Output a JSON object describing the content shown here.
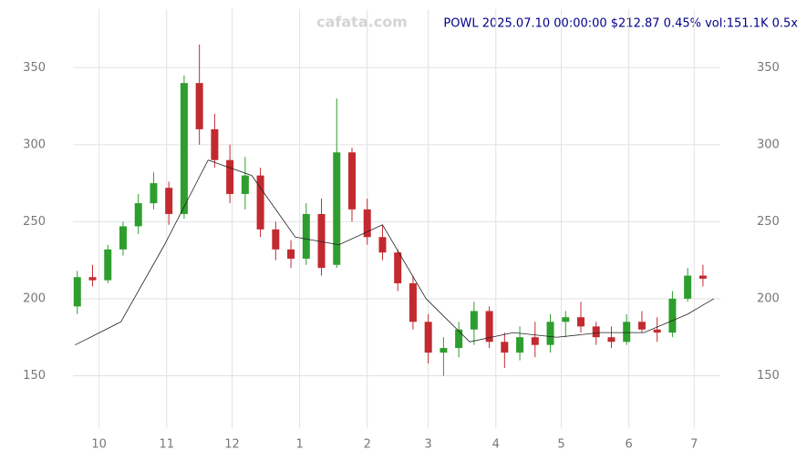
{
  "chart_data": {
    "type": "candlestick",
    "title": "POWL 2025.07.10 00:00:00 $212.87 0.45% vol:151.1K 0.5x",
    "watermark": "cafata.com",
    "x": [
      20,
      27,
      34,
      41,
      48,
      55,
      62,
      69,
      76,
      83,
      90,
      97,
      104,
      111,
      118,
      125,
      132,
      139,
      146,
      153,
      160,
      167,
      174,
      181,
      188,
      195,
      202,
      209,
      216,
      223,
      230,
      237,
      244,
      251,
      258,
      265,
      272,
      279,
      286,
      293,
      300,
      307
    ],
    "open": [
      195,
      214,
      212,
      232,
      247,
      262,
      272,
      255,
      340,
      310,
      290,
      268,
      280,
      245,
      232,
      226,
      255,
      222,
      295,
      258,
      240,
      230,
      210,
      185,
      165,
      168,
      180,
      192,
      172,
      165,
      175,
      170,
      185,
      188,
      182,
      175,
      172,
      185,
      180,
      178,
      200,
      215
    ],
    "high": [
      218,
      222,
      235,
      250,
      268,
      282,
      276,
      345,
      365,
      320,
      300,
      292,
      285,
      250,
      238,
      262,
      265,
      330,
      298,
      265,
      248,
      232,
      215,
      190,
      175,
      185,
      198,
      195,
      178,
      182,
      185,
      190,
      192,
      198,
      185,
      182,
      190,
      192,
      188,
      205,
      220,
      222
    ],
    "low": [
      190,
      208,
      210,
      228,
      242,
      258,
      248,
      252,
      300,
      285,
      262,
      258,
      240,
      225,
      220,
      222,
      215,
      220,
      250,
      235,
      225,
      205,
      180,
      158,
      150,
      162,
      170,
      168,
      155,
      160,
      162,
      165,
      175,
      178,
      170,
      168,
      170,
      178,
      172,
      175,
      198,
      208
    ],
    "close": [
      214,
      212,
      232,
      247,
      262,
      275,
      255,
      340,
      310,
      290,
      268,
      280,
      245,
      232,
      226,
      255,
      220,
      295,
      258,
      240,
      230,
      210,
      185,
      165,
      168,
      180,
      192,
      172,
      165,
      175,
      170,
      185,
      188,
      182,
      175,
      172,
      185,
      180,
      178,
      200,
      215,
      213
    ],
    "up_color": "#2e9e2e",
    "down_color": "#c22a30",
    "ma": {
      "color": "#222222",
      "x": [
        19,
        40,
        60,
        80,
        100,
        120,
        140,
        160,
        180,
        200,
        220,
        240,
        260,
        280,
        300,
        312
      ],
      "values": [
        170,
        185,
        235,
        290,
        280,
        240,
        235,
        248,
        200,
        172,
        178,
        175,
        178,
        178,
        190,
        200
      ]
    },
    "xlim": [
      18,
      315
    ],
    "ylim": [
      116,
      388
    ],
    "xticks": [
      {
        "value": 30,
        "label": "10"
      },
      {
        "value": 61,
        "label": "11"
      },
      {
        "value": 91,
        "label": "12"
      },
      {
        "value": 122,
        "label": "1"
      },
      {
        "value": 153,
        "label": "2"
      },
      {
        "value": 181,
        "label": "3"
      },
      {
        "value": 212,
        "label": "4"
      },
      {
        "value": 242,
        "label": "5"
      },
      {
        "value": 273,
        "label": "6"
      },
      {
        "value": 303,
        "label": "7"
      }
    ],
    "yticks": [
      150,
      200,
      250,
      300,
      350
    ],
    "grid": true
  }
}
